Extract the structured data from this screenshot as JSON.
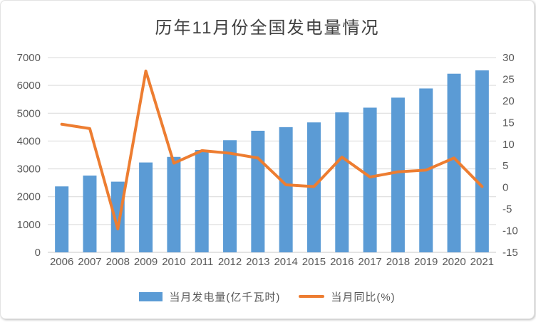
{
  "chart_data": {
    "type": "bar+line",
    "title": "历年11月份全国发电量情况",
    "categories": [
      "2006",
      "2007",
      "2008",
      "2009",
      "2010",
      "2011",
      "2012",
      "2013",
      "2014",
      "2015",
      "2016",
      "2017",
      "2018",
      "2019",
      "2020",
      "2021"
    ],
    "series": [
      {
        "name": "当月发电量(亿千瓦时)",
        "type": "bar",
        "axis": "left",
        "values": [
          2370,
          2760,
          2540,
          3230,
          3430,
          3680,
          4030,
          4370,
          4500,
          4670,
          5030,
          5200,
          5560,
          5890,
          6420,
          6540
        ]
      },
      {
        "name": "当月同比(%)",
        "type": "line",
        "axis": "right",
        "values": [
          14.6,
          13.6,
          -9.6,
          26.9,
          5.6,
          8.5,
          7.9,
          6.8,
          0.6,
          0.2,
          7.0,
          2.4,
          3.6,
          4.0,
          6.8,
          0.2
        ]
      }
    ],
    "left_axis": {
      "min": 0,
      "max": 7000,
      "step": 1000
    },
    "right_axis": {
      "min": -15,
      "max": 30,
      "step": 5
    },
    "grid": "horizontal",
    "legend_position": "bottom",
    "colors": {
      "bar": "#5B9BD5",
      "line": "#ED7D31",
      "grid": "#D9D9D9",
      "axis_line": "#C9C9C9",
      "axis_text": "#595959",
      "title_text": "#3F3F3F"
    }
  }
}
